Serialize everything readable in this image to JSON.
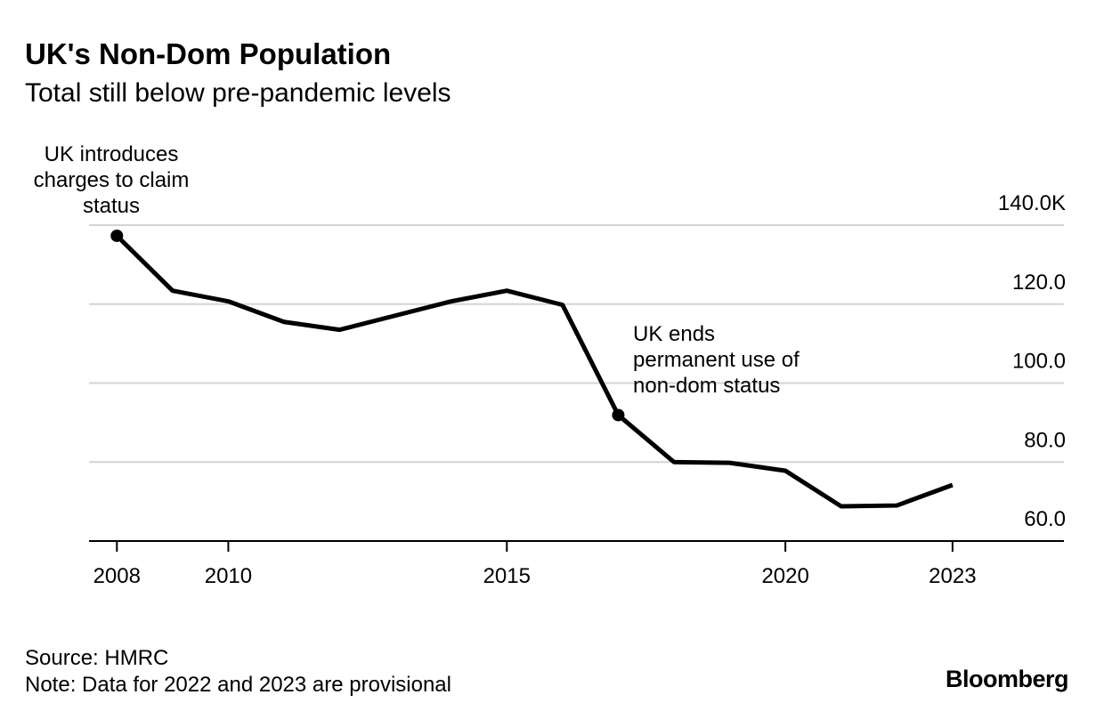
{
  "chart_data": {
    "type": "line",
    "title": "UK's Non-Dom Population",
    "subtitle": "Total still below pre-pandemic levels",
    "x": [
      2008,
      2009,
      2010,
      2011,
      2012,
      2013,
      2014,
      2015,
      2016,
      2017,
      2018,
      2019,
      2020,
      2021,
      2022,
      2023
    ],
    "values": [
      137.3,
      123.4,
      120.7,
      115.5,
      113.5,
      117.1,
      120.7,
      123.4,
      119.8,
      91.9,
      80.0,
      79.8,
      77.8,
      68.8,
      69.0,
      74.2
    ],
    "color": "#000000",
    "xlim": [
      2007.5,
      2025
    ],
    "xticks": [
      2008,
      2010,
      2015,
      2020,
      2023
    ],
    "ylim": [
      60,
      140
    ],
    "yticks": [
      {
        "value": 60,
        "label": "60.0"
      },
      {
        "value": 80,
        "label": "80.0"
      },
      {
        "value": 100,
        "label": "100.0"
      },
      {
        "value": 120,
        "label": "120.0"
      },
      {
        "value": 140,
        "label": "140.0K"
      }
    ],
    "grid": true,
    "annotations": [
      {
        "x": 2008,
        "lines": [
          "UK introduces",
          "charges to claim",
          "status"
        ]
      },
      {
        "x": 2017,
        "lines": [
          "UK ends",
          "permanent use of",
          "non-dom status"
        ]
      }
    ],
    "source": "Source: HMRC",
    "note": "Note: Data for 2022 and 2023 are provisional",
    "brand": "Bloomberg"
  }
}
